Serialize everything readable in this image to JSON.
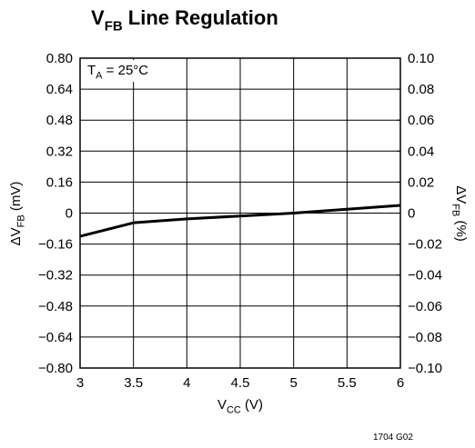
{
  "chart_data": {
    "type": "line",
    "title": [
      "V",
      "FB",
      " Line Regulation"
    ],
    "x_label": [
      "V",
      "CC",
      " (V)"
    ],
    "y_label": [
      "ΔV",
      "FB",
      " (mV)"
    ],
    "y2_label": [
      "ΔV",
      "FB",
      " (%)"
    ],
    "annotation": [
      "T",
      "A",
      " = 25°C"
    ],
    "footnote": "1704 G02",
    "x": [
      3,
      3.5,
      4,
      4.5,
      5,
      5.5,
      6
    ],
    "values": [
      -0.12,
      -0.05,
      -0.03,
      -0.015,
      0,
      0.02,
      0.04
    ],
    "color": "#000000",
    "xlim": [
      3,
      6
    ],
    "xticks": [
      3,
      3.5,
      4,
      4.5,
      5,
      5.5,
      6
    ],
    "ylim": [
      -0.8,
      0.8
    ],
    "yticks": [
      {
        "value": -0.8,
        "label": "−0.80"
      },
      {
        "value": -0.64,
        "label": "−0.64"
      },
      {
        "value": -0.48,
        "label": "−0.48"
      },
      {
        "value": -0.32,
        "label": "−0.32"
      },
      {
        "value": -0.16,
        "label": "−0.16"
      },
      0,
      {
        "value": 0.16,
        "label": "0.16"
      },
      {
        "value": 0.32,
        "label": "0.32"
      },
      {
        "value": 0.48,
        "label": "0.48"
      },
      {
        "value": 0.64,
        "label": "0.64"
      },
      {
        "value": 0.8,
        "label": "0.80"
      }
    ],
    "y2lim": [
      -0.1,
      0.1
    ],
    "y2ticks": [
      {
        "value": -0.1,
        "label": "−0.10"
      },
      {
        "value": -0.08,
        "label": "−0.08"
      },
      {
        "value": -0.06,
        "label": "−0.06"
      },
      {
        "value": -0.04,
        "label": "−0.04"
      },
      {
        "value": -0.02,
        "label": "−0.02"
      },
      0,
      {
        "value": 0.02,
        "label": "0.02"
      },
      {
        "value": 0.04,
        "label": "0.04"
      },
      {
        "value": 0.06,
        "label": "0.06"
      },
      {
        "value": 0.08,
        "label": "0.08"
      },
      {
        "value": 0.1,
        "label": "0.10"
      }
    ],
    "grid": true
  }
}
